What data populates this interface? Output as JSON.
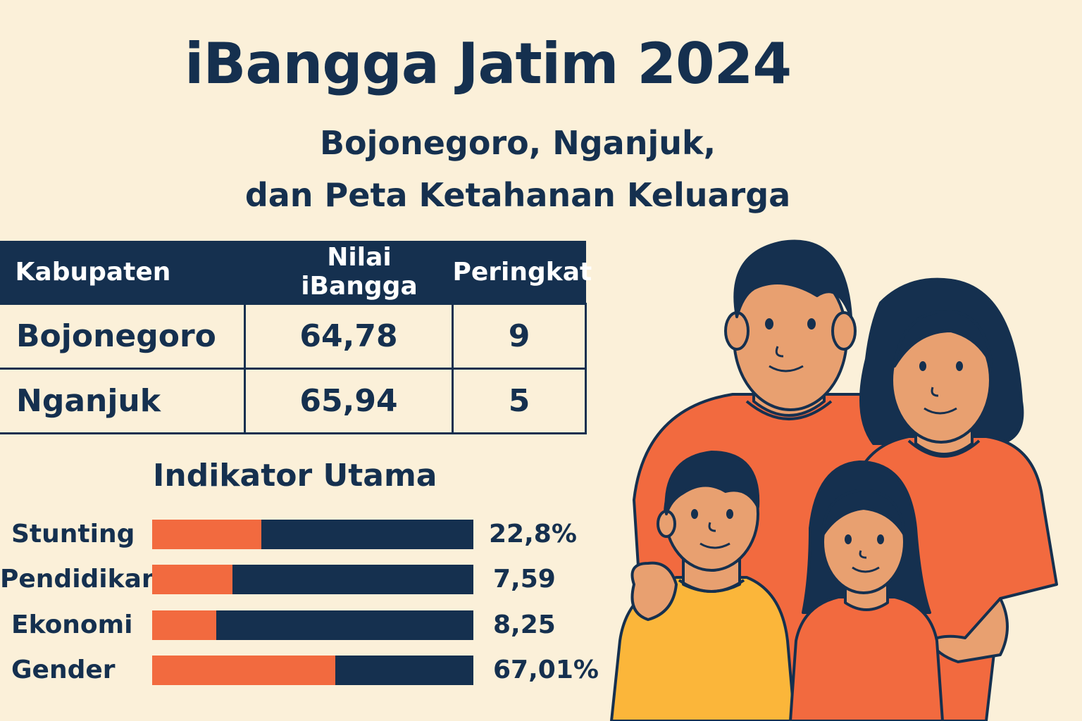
{
  "header": {
    "title": "iBangga Jatim 2024",
    "subtitle_line1": "Bojonegoro, Nganjuk,",
    "subtitle_line2": "dan Peta Ketahanan Keluarga"
  },
  "table": {
    "headers": [
      "Kabupaten",
      "Nilai iBangga",
      "Peringkat"
    ],
    "rows": [
      {
        "kabupaten": "Bojonegoro",
        "nilai": "64,78",
        "peringkat": "9"
      },
      {
        "kabupaten": "Nganjuk",
        "nilai": "65,94",
        "peringkat": "5"
      }
    ]
  },
  "indikator": {
    "title": "Indikator Utama",
    "items": [
      {
        "label": "Stunting",
        "value": "22,8%",
        "fill_fraction": 0.34
      },
      {
        "label": "Pendidikan",
        "value": "7,59",
        "fill_fraction": 0.25
      },
      {
        "label": "Ekonomi",
        "value": "8,25",
        "fill_fraction": 0.2
      },
      {
        "label": "Gender",
        "value": "67,01%",
        "fill_fraction": 0.57
      }
    ]
  },
  "illustration": {
    "subject": "family-of-four",
    "colors": {
      "navy": "#15304f",
      "orange": "#f26a3f",
      "skin": "#e8a070",
      "yellow": "#fbb63a",
      "background": "#fbf0d9"
    }
  }
}
